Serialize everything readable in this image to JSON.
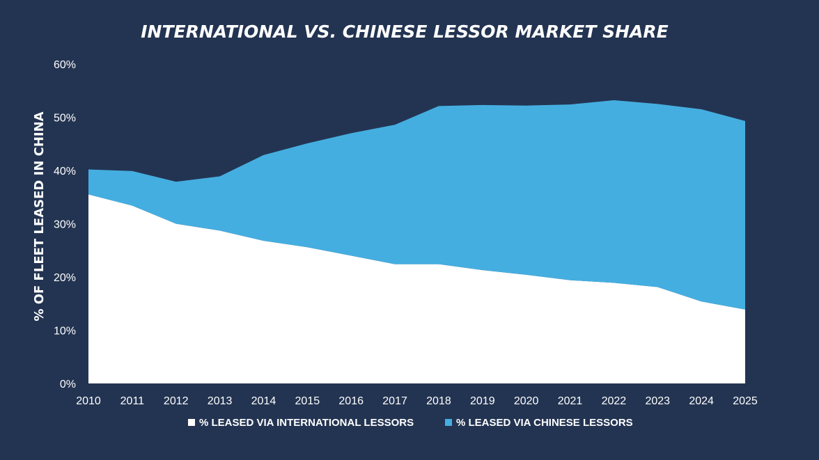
{
  "chart_data": {
    "type": "area",
    "stacked": true,
    "title": "INTERNATIONAL VS. CHINESE LESSOR MARKET SHARE",
    "xlabel": "",
    "ylabel": "% OF FLEET LEASED IN CHINA",
    "x": [
      "2010",
      "2011",
      "2012",
      "2013",
      "2014",
      "2015",
      "2016",
      "2017",
      "2018",
      "2019",
      "2020",
      "2021",
      "2022",
      "2023",
      "2024",
      "2025"
    ],
    "ylim": [
      0,
      60
    ],
    "yticks": [
      "0%",
      "10%",
      "20%",
      "30%",
      "40%",
      "50%",
      "60%"
    ],
    "grid": false,
    "legend_position": "bottom",
    "series": [
      {
        "name": "% LEASED VIA INTERNATIONAL LESSORS",
        "color": "#ffffff",
        "values": [
          35.5,
          33.4,
          30.0,
          28.7,
          26.8,
          25.6,
          24.0,
          22.4,
          22.4,
          21.3,
          20.4,
          19.4,
          18.9,
          18.1,
          15.4,
          13.9
        ]
      },
      {
        "name": "% LEASED VIA CHINESE LESSORS",
        "color": "#45aee0",
        "values": [
          4.7,
          6.5,
          7.9,
          10.2,
          16.1,
          19.5,
          23.0,
          26.2,
          29.7,
          31.0,
          31.8,
          33.0,
          34.3,
          34.4,
          36.1,
          35.4
        ]
      }
    ]
  },
  "colors": {
    "background": "#233452",
    "text": "#ffffff"
  }
}
